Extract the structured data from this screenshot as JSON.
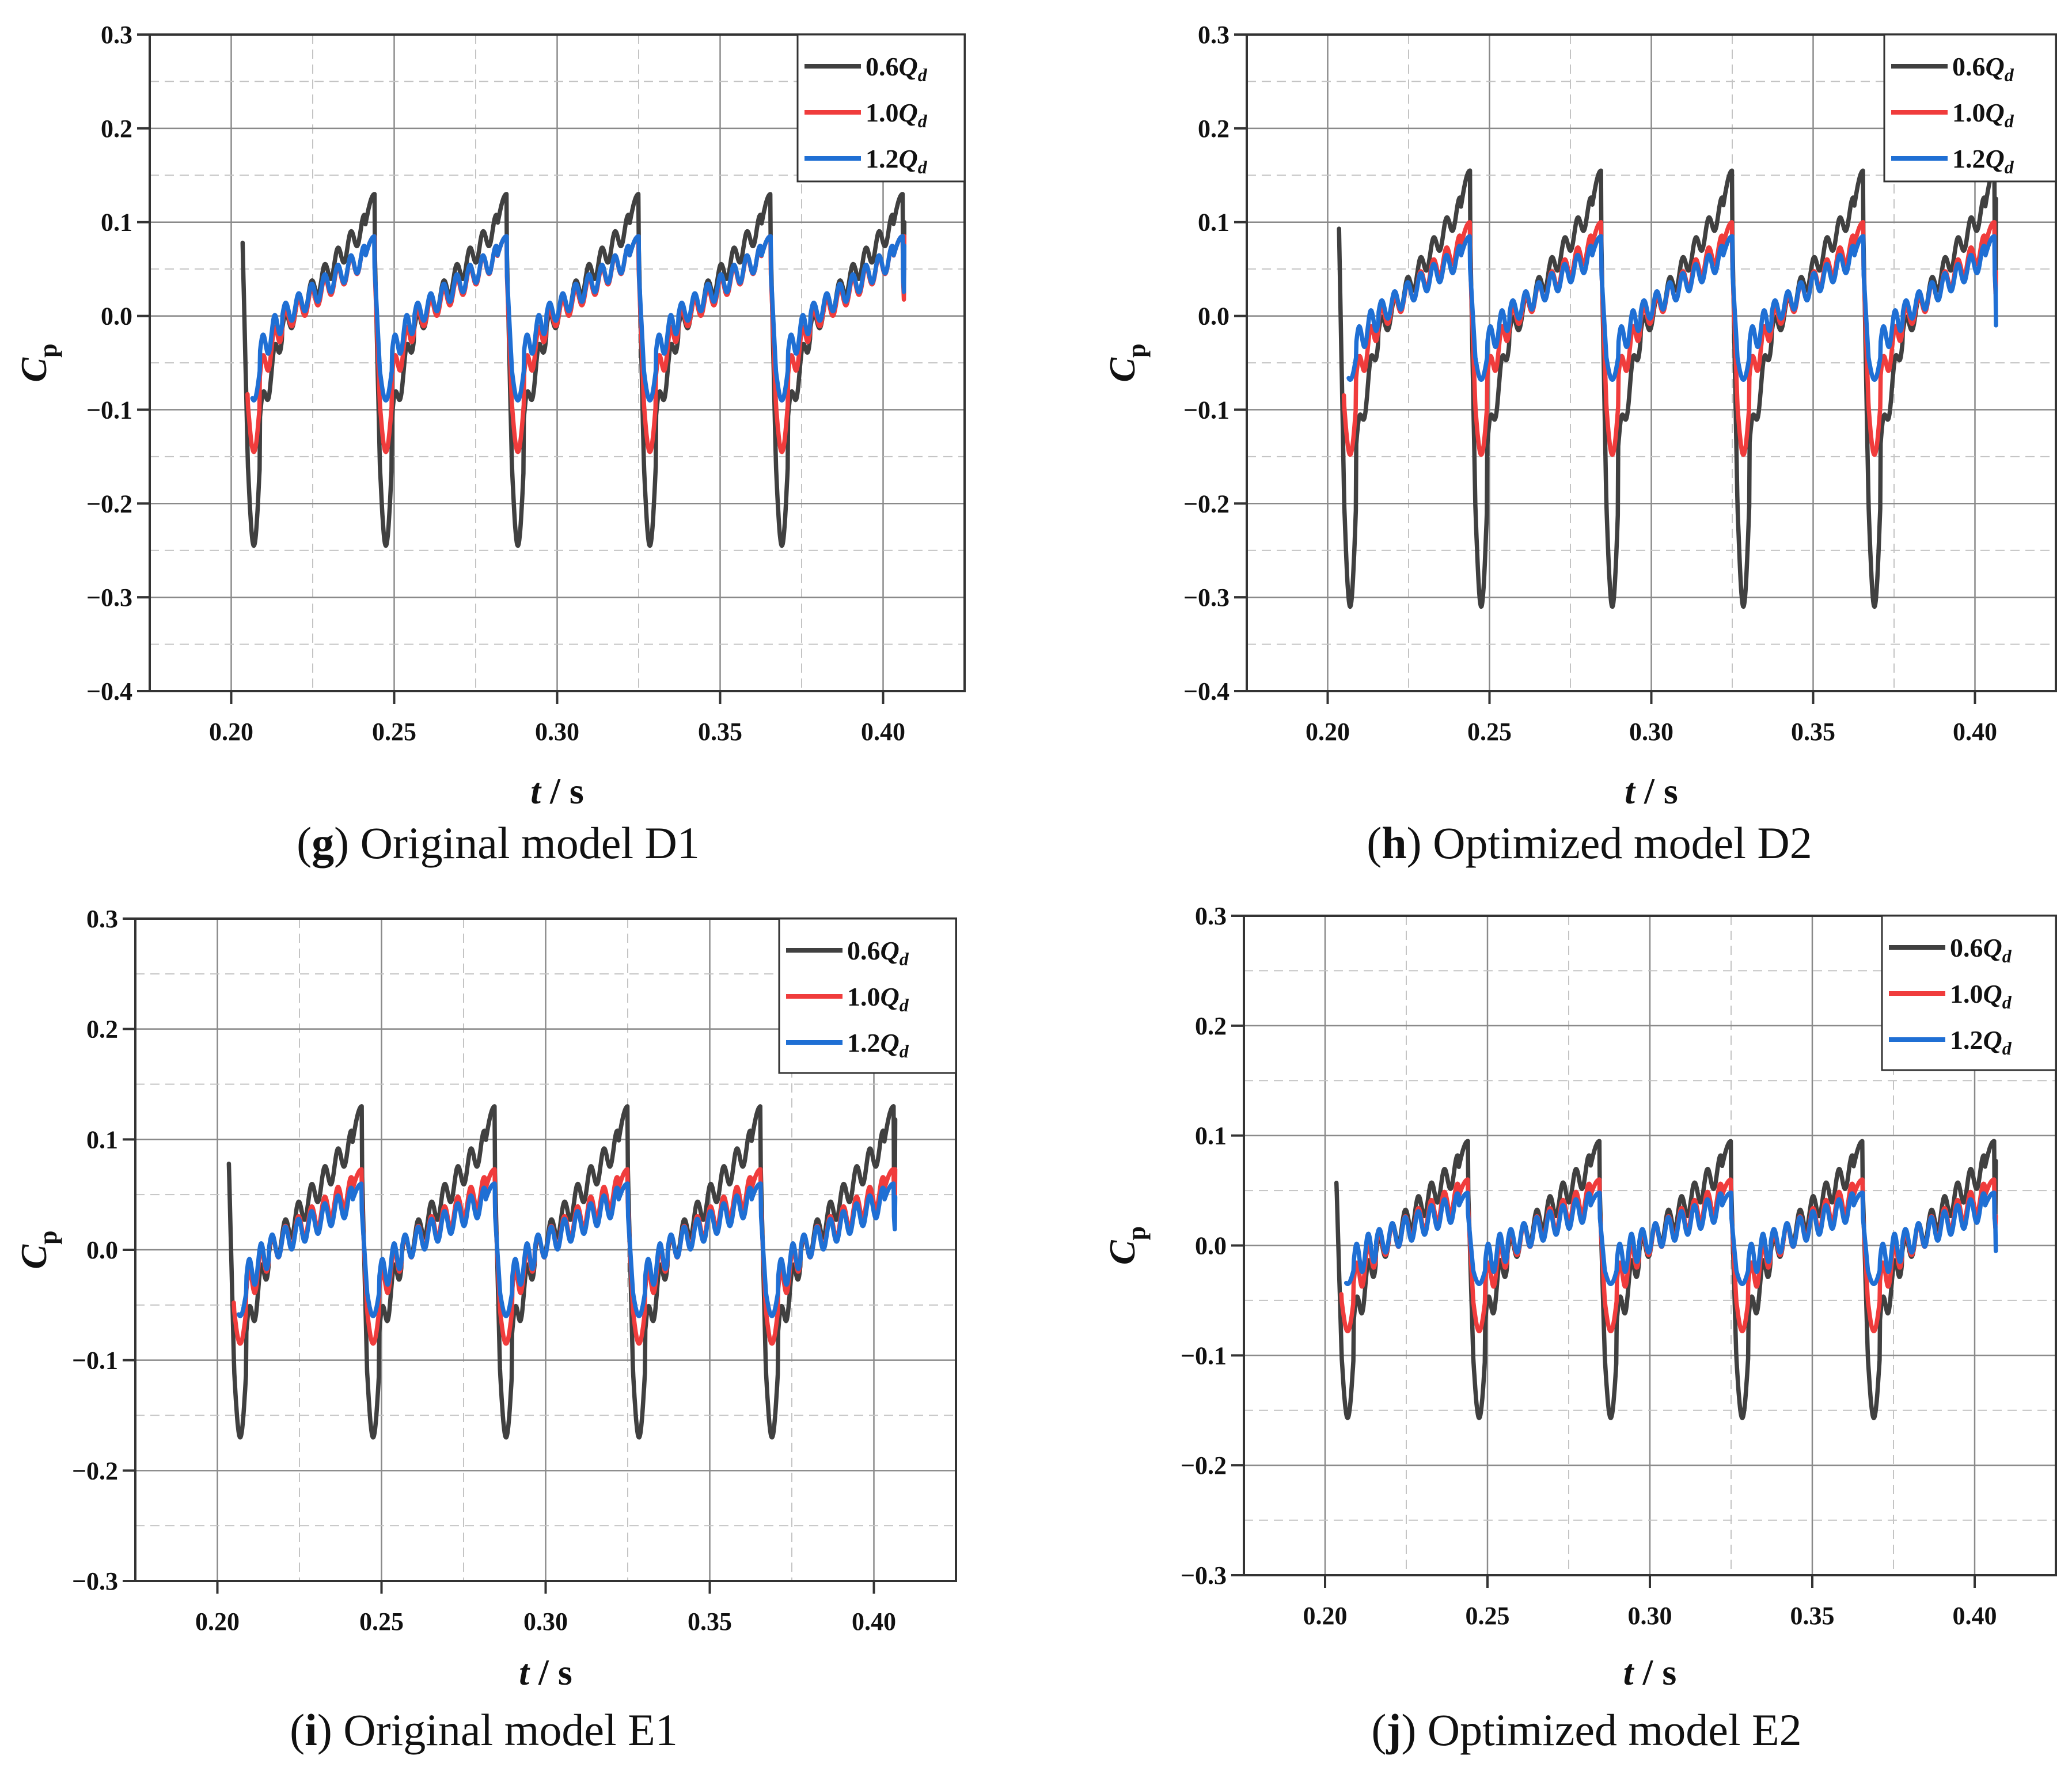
{
  "colors": {
    "0.6Qd": "#404040",
    "1.0Qd": "#f03c3c",
    "1.2Qd": "#1f6fd4"
  },
  "chart_data": [
    {
      "type": "line",
      "panel": "g",
      "caption_letter": "g",
      "caption_text": "Original model D1",
      "xlabel": "t / s",
      "ylabel": "C_p",
      "xlim": [
        0.175,
        0.425
      ],
      "ylim": [
        -0.4,
        0.3
      ],
      "xticks": [
        "0.20",
        "0.25",
        "0.30",
        "0.35",
        "0.40"
      ],
      "yticks": [
        "−0.4",
        "−0.3",
        "−0.2",
        "−0.1",
        "0.0",
        "0.1",
        "0.2",
        "0.3"
      ],
      "legend": {
        "position": "top-right",
        "entries": [
          "0.6Qd",
          "1.0Qd",
          "1.2Qd"
        ]
      },
      "grid": true,
      "series": [
        {
          "name": "0.6Qd",
          "peak": 0.13,
          "trough": -0.245,
          "end": 0.1
        },
        {
          "name": "1.0Qd",
          "peak": 0.085,
          "trough": -0.145,
          "end": 0.085
        },
        {
          "name": "1.2Qd",
          "peak": 0.085,
          "trough": -0.09,
          "end": 0.075
        }
      ]
    },
    {
      "type": "line",
      "panel": "h",
      "caption_letter": "h",
      "caption_text": "Optimized model D2",
      "xlabel": "t / s",
      "ylabel": "C_p",
      "xlim": [
        0.175,
        0.425
      ],
      "ylim": [
        -0.4,
        0.3
      ],
      "xticks": [
        "0.20",
        "0.25",
        "0.30",
        "0.35",
        "0.40"
      ],
      "yticks": [
        "−0.4",
        "−0.3",
        "−0.2",
        "−0.1",
        "0.0",
        "0.1",
        "0.2",
        "0.3"
      ],
      "legend": {
        "position": "top-right",
        "entries": [
          "0.6Qd",
          "1.0Qd",
          "1.2Qd"
        ]
      },
      "grid": true,
      "series": [
        {
          "name": "0.6Qd",
          "peak": 0.155,
          "trough": -0.31,
          "end": 0.125
        },
        {
          "name": "1.0Qd",
          "peak": 0.1,
          "trough": -0.148,
          "end": 0.047
        },
        {
          "name": "1.2Qd",
          "peak": 0.085,
          "trough": -0.068,
          "end": -0.01
        }
      ]
    },
    {
      "type": "line",
      "panel": "i",
      "caption_letter": "i",
      "caption_text": "Original model E1",
      "xlabel": "t / s",
      "ylabel": "C_p",
      "xlim": [
        0.175,
        0.425
      ],
      "ylim": [
        -0.3,
        0.3
      ],
      "xticks": [
        "0.20",
        "0.25",
        "0.30",
        "0.35",
        "0.40"
      ],
      "yticks": [
        "−0.3",
        "−0.2",
        "−0.1",
        "0.0",
        "0.1",
        "0.2",
        "0.3"
      ],
      "legend": {
        "position": "top-right",
        "entries": [
          "0.6Qd",
          "1.0Qd",
          "1.2Qd"
        ]
      },
      "grid": true,
      "series": [
        {
          "name": "0.6Qd",
          "peak": 0.13,
          "trough": -0.17,
          "end": 0.118
        },
        {
          "name": "1.0Qd",
          "peak": 0.073,
          "trough": -0.085,
          "end": 0.073
        },
        {
          "name": "1.2Qd",
          "peak": 0.06,
          "trough": -0.06,
          "end": 0.048
        }
      ]
    },
    {
      "type": "line",
      "panel": "j",
      "caption_letter": "j",
      "caption_text": "Optimized model E2",
      "xlabel": "t / s",
      "ylabel": "C_p",
      "xlim": [
        0.175,
        0.425
      ],
      "ylim": [
        -0.3,
        0.3
      ],
      "xticks": [
        "0.20",
        "0.25",
        "0.30",
        "0.35",
        "0.40"
      ],
      "yticks": [
        "−0.3",
        "−0.2",
        "−0.1",
        "0.0",
        "0.1",
        "0.2",
        "0.3"
      ],
      "legend": {
        "position": "top-right",
        "entries": [
          "0.6Qd",
          "1.0Qd",
          "1.2Qd"
        ]
      },
      "grid": true,
      "series": [
        {
          "name": "0.6Qd",
          "peak": 0.095,
          "trough": -0.157,
          "end": 0.077
        },
        {
          "name": "1.0Qd",
          "peak": 0.06,
          "trough": -0.078,
          "end": 0.027
        },
        {
          "name": "1.2Qd",
          "peak": 0.048,
          "trough": -0.035,
          "end": -0.005
        }
      ]
    }
  ]
}
